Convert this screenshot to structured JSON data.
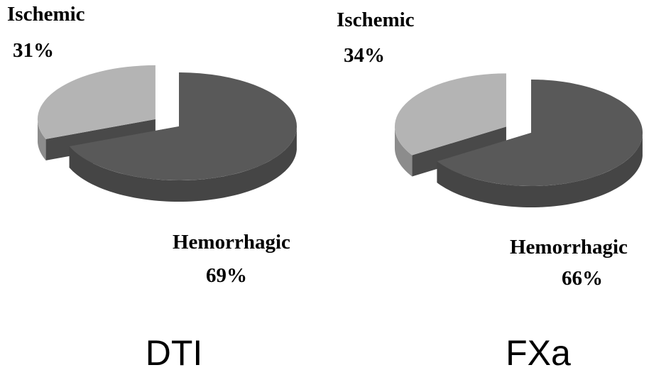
{
  "chart_data": [
    {
      "type": "pie",
      "title": "DTI",
      "categories": [
        "Ischemic",
        "Hemorrhagic"
      ],
      "values": [
        31,
        69
      ],
      "value_labels": [
        "31%",
        "69%"
      ],
      "exploded": "Ischemic",
      "colors": [
        "#b4b4b4",
        "#595959"
      ]
    },
    {
      "type": "pie",
      "title": "FXa",
      "categories": [
        "Ischemic",
        "Hemorrhagic"
      ],
      "values": [
        34,
        66
      ],
      "value_labels": [
        "34%",
        "66%"
      ],
      "exploded": "Ischemic",
      "colors": [
        "#b4b4b4",
        "#595959"
      ]
    }
  ]
}
